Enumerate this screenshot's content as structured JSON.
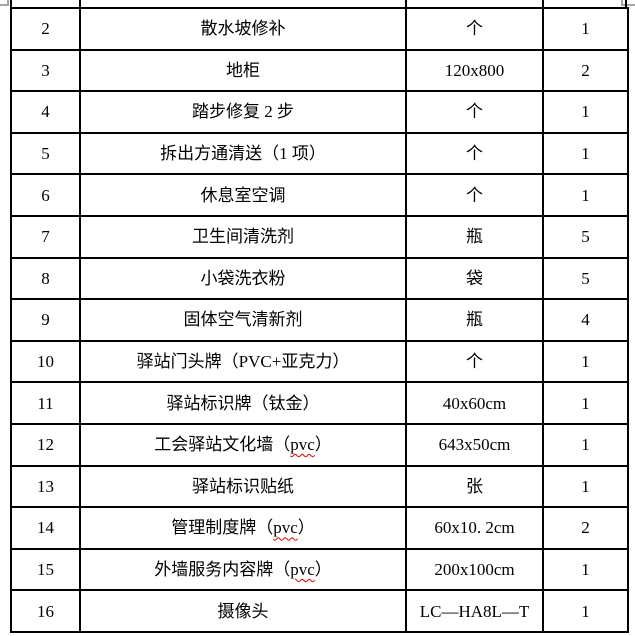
{
  "page": {
    "background_color": "#ffffff",
    "crop_mark_color": "#a6a6a6",
    "table_border_color": "#000000",
    "text_color": "#000000",
    "spellcheck_underline_color": "#e00000"
  },
  "table": {
    "columns": [
      "index",
      "name",
      "spec",
      "qty"
    ],
    "rows": [
      {
        "index": "2",
        "name": "散水坡修补",
        "spec": "个",
        "qty": "1"
      },
      {
        "index": "3",
        "name": "地柜",
        "spec": "120x800",
        "qty": "2"
      },
      {
        "index": "4",
        "name": "踏步修复 2 步",
        "spec": "个",
        "qty": "1"
      },
      {
        "index": "5",
        "name": "拆出方通清送（1 项）",
        "spec": "个",
        "qty": "1"
      },
      {
        "index": "6",
        "name": "休息室空调",
        "spec": "个",
        "qty": "1"
      },
      {
        "index": "7",
        "name": "卫生间清洗剂",
        "spec": "瓶",
        "qty": "5"
      },
      {
        "index": "8",
        "name": "小袋洗衣粉",
        "spec": "袋",
        "qty": "5"
      },
      {
        "index": "9",
        "name": "固体空气清新剂",
        "spec": "瓶",
        "qty": "4"
      },
      {
        "index": "10",
        "name": "驿站门头牌（PVC+亚克力）",
        "spec": "个",
        "qty": "1"
      },
      {
        "index": "11",
        "name": "驿站标识牌（钛金）",
        "spec": "40x60cm",
        "qty": "1"
      },
      {
        "index": "12",
        "name_pre": "工会驿站文化墙（",
        "name_misspelled": "pvc",
        "name_post": "）",
        "spec": "643x50cm",
        "qty": "1"
      },
      {
        "index": "13",
        "name": "驿站标识贴纸",
        "spec": "张",
        "qty": "1"
      },
      {
        "index": "14",
        "name_pre": "管理制度牌（",
        "name_misspelled": "pvc",
        "name_post": "）",
        "spec": "60x10. 2cm",
        "qty": "2"
      },
      {
        "index": "15",
        "name_pre": "外墙服务内容牌（",
        "name_misspelled": "pvc",
        "name_post": "）",
        "spec": "200x100cm",
        "qty": "1"
      },
      {
        "index": "16",
        "name": "摄像头",
        "spec": "LC—HA8L—T",
        "qty": "1"
      }
    ]
  }
}
